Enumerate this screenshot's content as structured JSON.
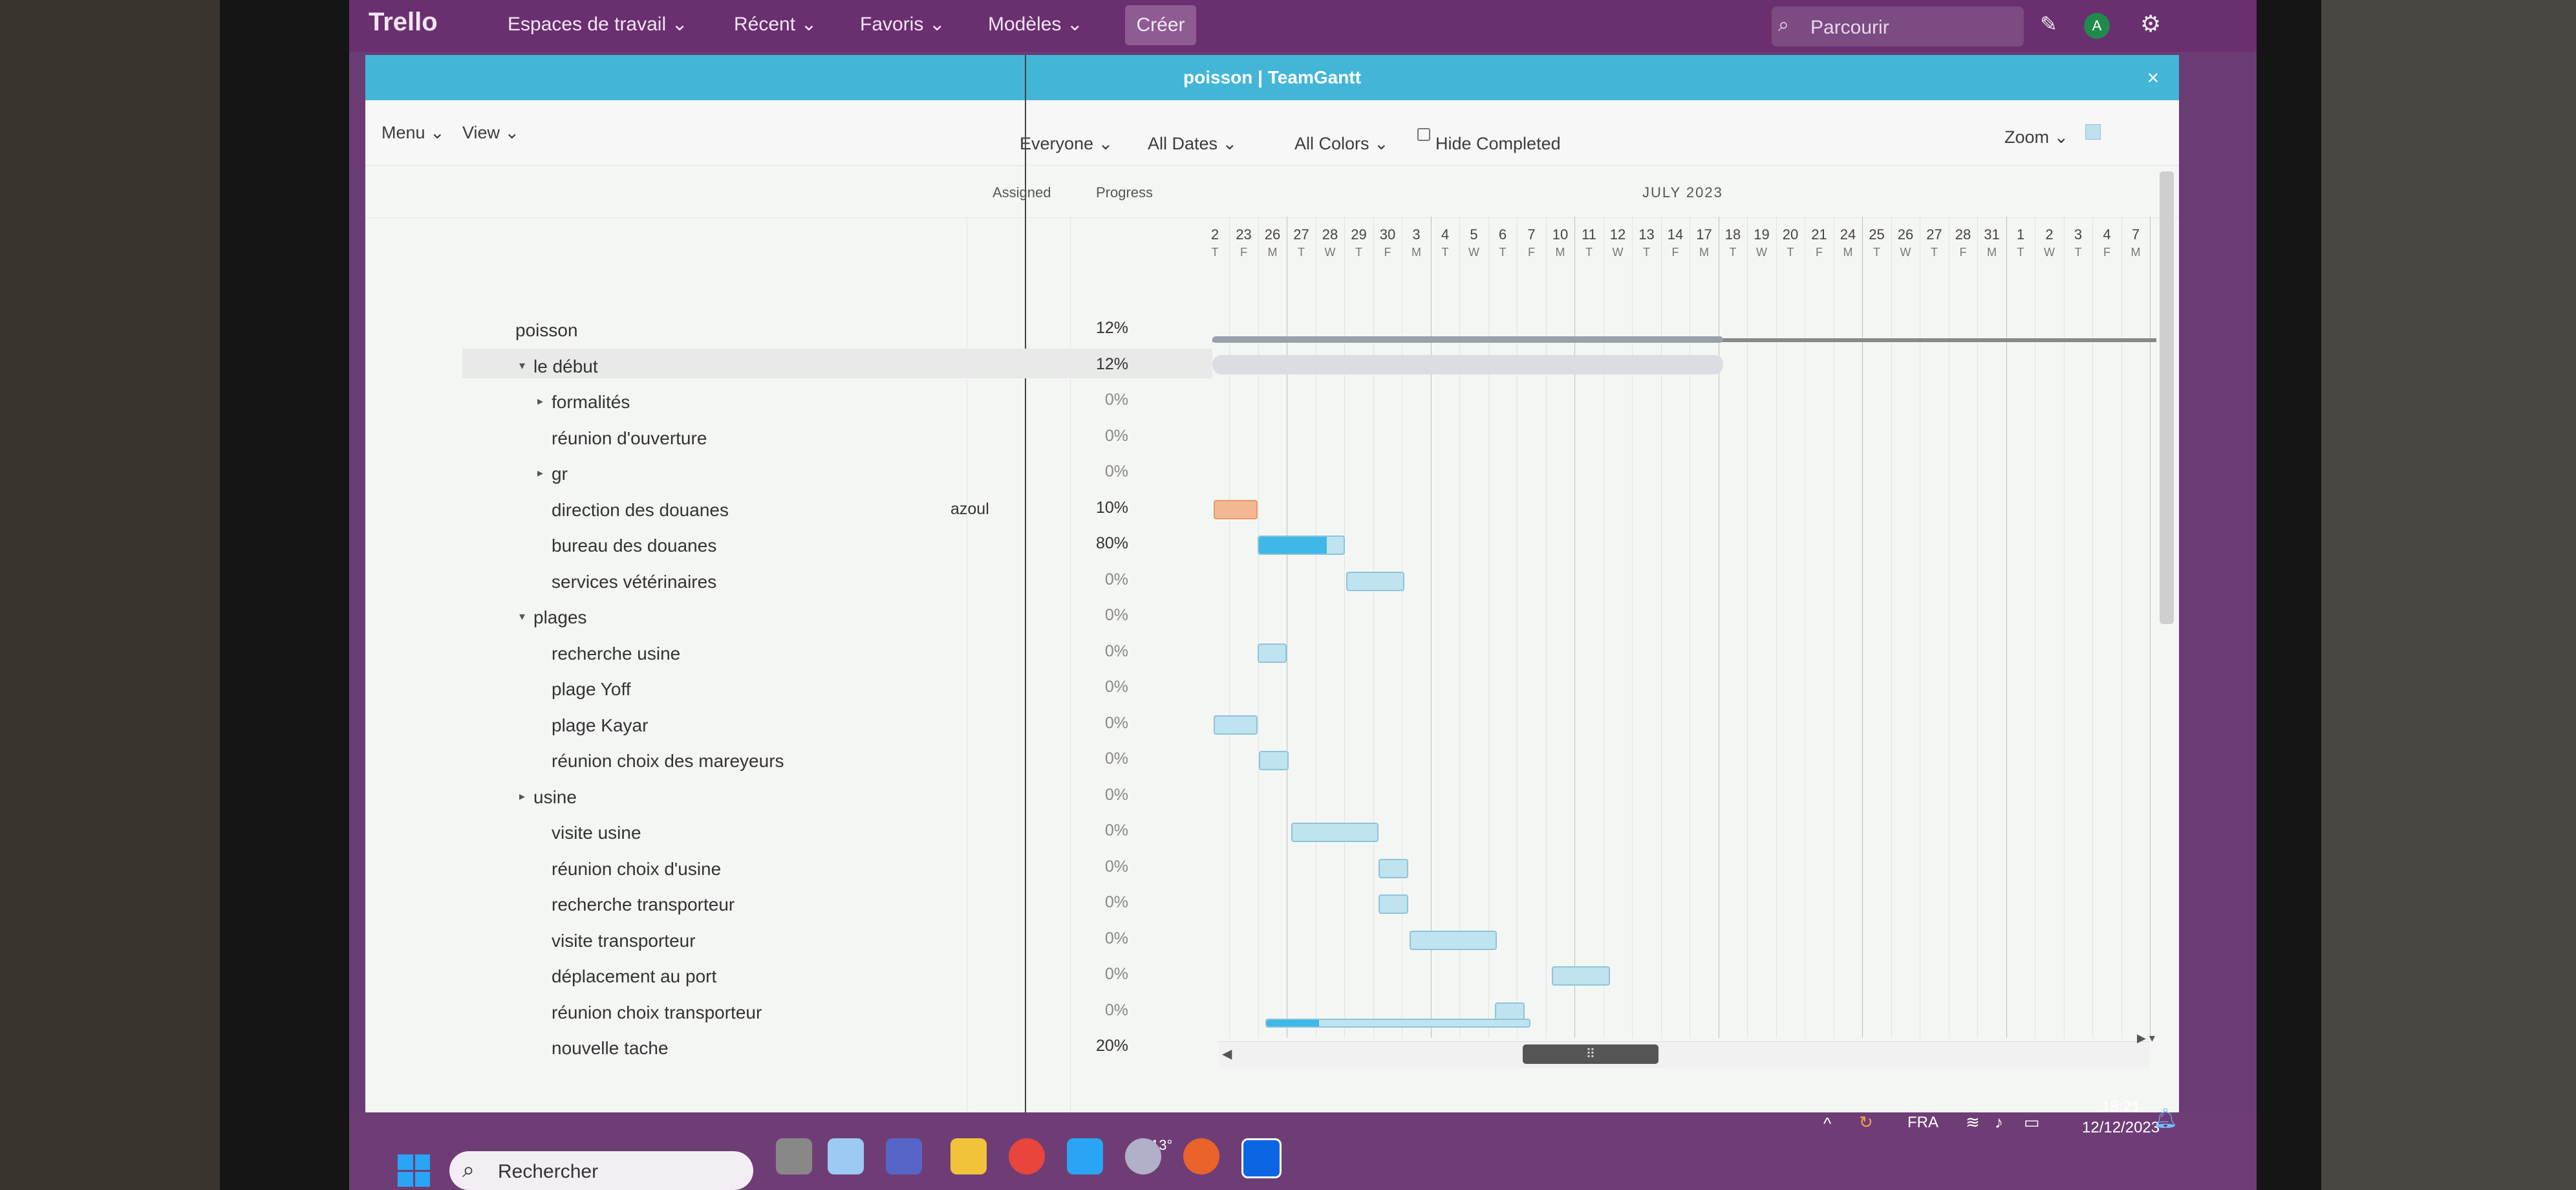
{
  "trello": {
    "logo": "Trello",
    "menus": [
      "Espaces de travail",
      "Récent",
      "Favoris",
      "Modèles"
    ],
    "create": "Créer",
    "search_placeholder": "Parcourir",
    "avatar": "A"
  },
  "window": {
    "title": "poisson | TeamGantt",
    "close": "×"
  },
  "toolbar": {
    "menu": "Menu",
    "view": "View",
    "everyone": "Everyone",
    "all_dates": "All Dates",
    "all_colors": "All Colors",
    "hide_completed": "Hide Completed",
    "zoom": "Zoom"
  },
  "columns": {
    "assigned": "Assigned",
    "progress": "Progress"
  },
  "timeline": {
    "month": "JULY 2023",
    "days": [
      {
        "d": "2",
        "w": "T"
      },
      {
        "d": "23",
        "w": "F"
      },
      {
        "d": "26",
        "w": "M"
      },
      {
        "d": "27",
        "w": "T"
      },
      {
        "d": "28",
        "w": "W"
      },
      {
        "d": "29",
        "w": "T"
      },
      {
        "d": "30",
        "w": "F"
      },
      {
        "d": "3",
        "w": "M"
      },
      {
        "d": "4",
        "w": "T"
      },
      {
        "d": "5",
        "w": "W"
      },
      {
        "d": "6",
        "w": "T"
      },
      {
        "d": "7",
        "w": "F"
      },
      {
        "d": "10",
        "w": "M"
      },
      {
        "d": "11",
        "w": "T"
      },
      {
        "d": "12",
        "w": "W"
      },
      {
        "d": "13",
        "w": "T"
      },
      {
        "d": "14",
        "w": "F"
      },
      {
        "d": "17",
        "w": "M"
      },
      {
        "d": "18",
        "w": "T"
      },
      {
        "d": "19",
        "w": "W"
      },
      {
        "d": "20",
        "w": "T"
      },
      {
        "d": "21",
        "w": "F"
      },
      {
        "d": "24",
        "w": "M"
      },
      {
        "d": "25",
        "w": "T"
      },
      {
        "d": "26",
        "w": "W"
      },
      {
        "d": "27",
        "w": "T"
      },
      {
        "d": "28",
        "w": "F"
      },
      {
        "d": "31",
        "w": "M"
      },
      {
        "d": "1",
        "w": "T"
      },
      {
        "d": "2",
        "w": "W"
      },
      {
        "d": "3",
        "w": "T"
      },
      {
        "d": "4",
        "w": "F"
      },
      {
        "d": "7",
        "w": "M"
      }
    ]
  },
  "rows": [
    {
      "label": "poisson",
      "pct": "12%",
      "assigned": ""
    },
    {
      "label": "le début",
      "pct": "12%",
      "assigned": ""
    },
    {
      "label": "formalités",
      "pct": "0%",
      "assigned": ""
    },
    {
      "label": "réunion d'ouverture",
      "pct": "0%",
      "assigned": ""
    },
    {
      "label": "gr",
      "pct": "0%",
      "assigned": ""
    },
    {
      "label": "direction des douanes",
      "pct": "10%",
      "assigned": "azoul"
    },
    {
      "label": "bureau des douanes",
      "pct": "80%",
      "assigned": ""
    },
    {
      "label": "services vétérinaires",
      "pct": "0%",
      "assigned": ""
    },
    {
      "label": "plages",
      "pct": "0%",
      "assigned": ""
    },
    {
      "label": "recherche usine",
      "pct": "0%",
      "assigned": ""
    },
    {
      "label": "plage Yoff",
      "pct": "0%",
      "assigned": ""
    },
    {
      "label": "plage Kayar",
      "pct": "0%",
      "assigned": ""
    },
    {
      "label": "réunion choix des mareyeurs",
      "pct": "0%",
      "assigned": ""
    },
    {
      "label": "usine",
      "pct": "0%",
      "assigned": ""
    },
    {
      "label": "visite usine",
      "pct": "0%",
      "assigned": ""
    },
    {
      "label": "réunion choix d'usine",
      "pct": "0%",
      "assigned": ""
    },
    {
      "label": "recherche transporteur",
      "pct": "0%",
      "assigned": ""
    },
    {
      "label": "visite transporteur",
      "pct": "0%",
      "assigned": ""
    },
    {
      "label": "déplacement au port",
      "pct": "0%",
      "assigned": ""
    },
    {
      "label": "réunion choix transporteur",
      "pct": "0%",
      "assigned": ""
    },
    {
      "label": "nouvelle tache",
      "pct": "20%",
      "assigned": ""
    }
  ],
  "taskbar": {
    "search": "Rechercher",
    "temp": "13°",
    "lang": "FRA",
    "time": "18:21",
    "date": "12/12/2023"
  }
}
